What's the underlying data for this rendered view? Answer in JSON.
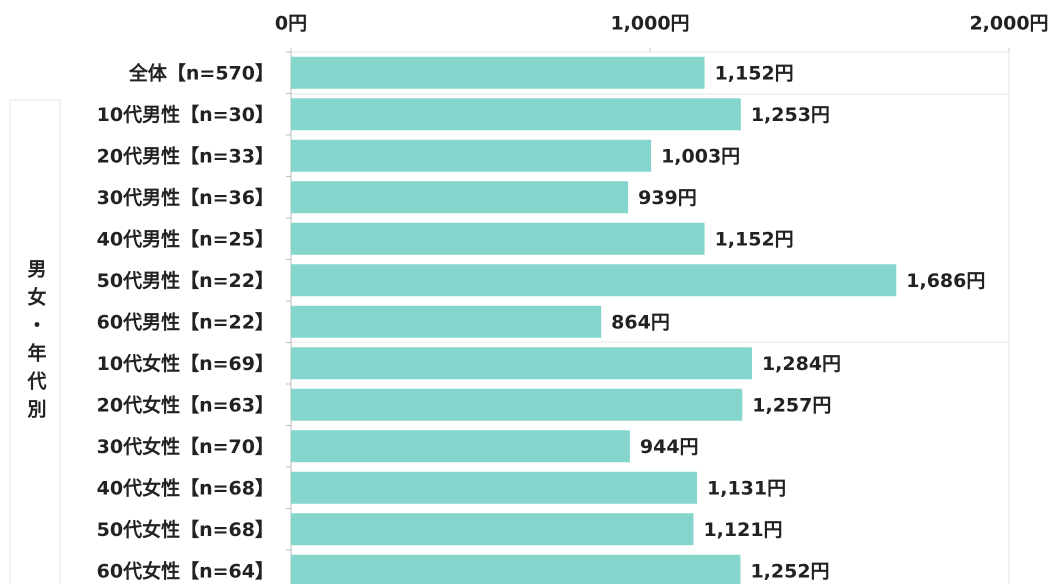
{
  "chart_data": {
    "type": "bar",
    "orientation": "horizontal",
    "group_label": "男女・年代別",
    "categories": [
      "全体【n=570】",
      "10代男性【n=30】",
      "20代男性【n=33】",
      "30代男性【n=36】",
      "40代男性【n=25】",
      "50代男性【n=22】",
      "60代男性【n=22】",
      "10代女性【n=69】",
      "20代女性【n=63】",
      "30代女性【n=70】",
      "40代女性【n=68】",
      "50代女性【n=68】",
      "60代女性【n=64】"
    ],
    "values": [
      1152,
      1253,
      1003,
      939,
      1152,
      1686,
      864,
      1284,
      1257,
      944,
      1131,
      1121,
      1252
    ],
    "value_labels": [
      "1,152円",
      "1,253円",
      "1,003円",
      "939円",
      "1,152円",
      "1,686円",
      "864円",
      "1,284円",
      "1,257円",
      "944円",
      "1,131円",
      "1,121円",
      "1,252円"
    ],
    "color": "#84d5cc",
    "xlim": [
      0,
      2000
    ],
    "xticks": [
      {
        "value": 0,
        "label": "0円"
      },
      {
        "value": 1000,
        "label": "1,000円"
      },
      {
        "value": 2000,
        "label": "2,000円"
      }
    ]
  }
}
